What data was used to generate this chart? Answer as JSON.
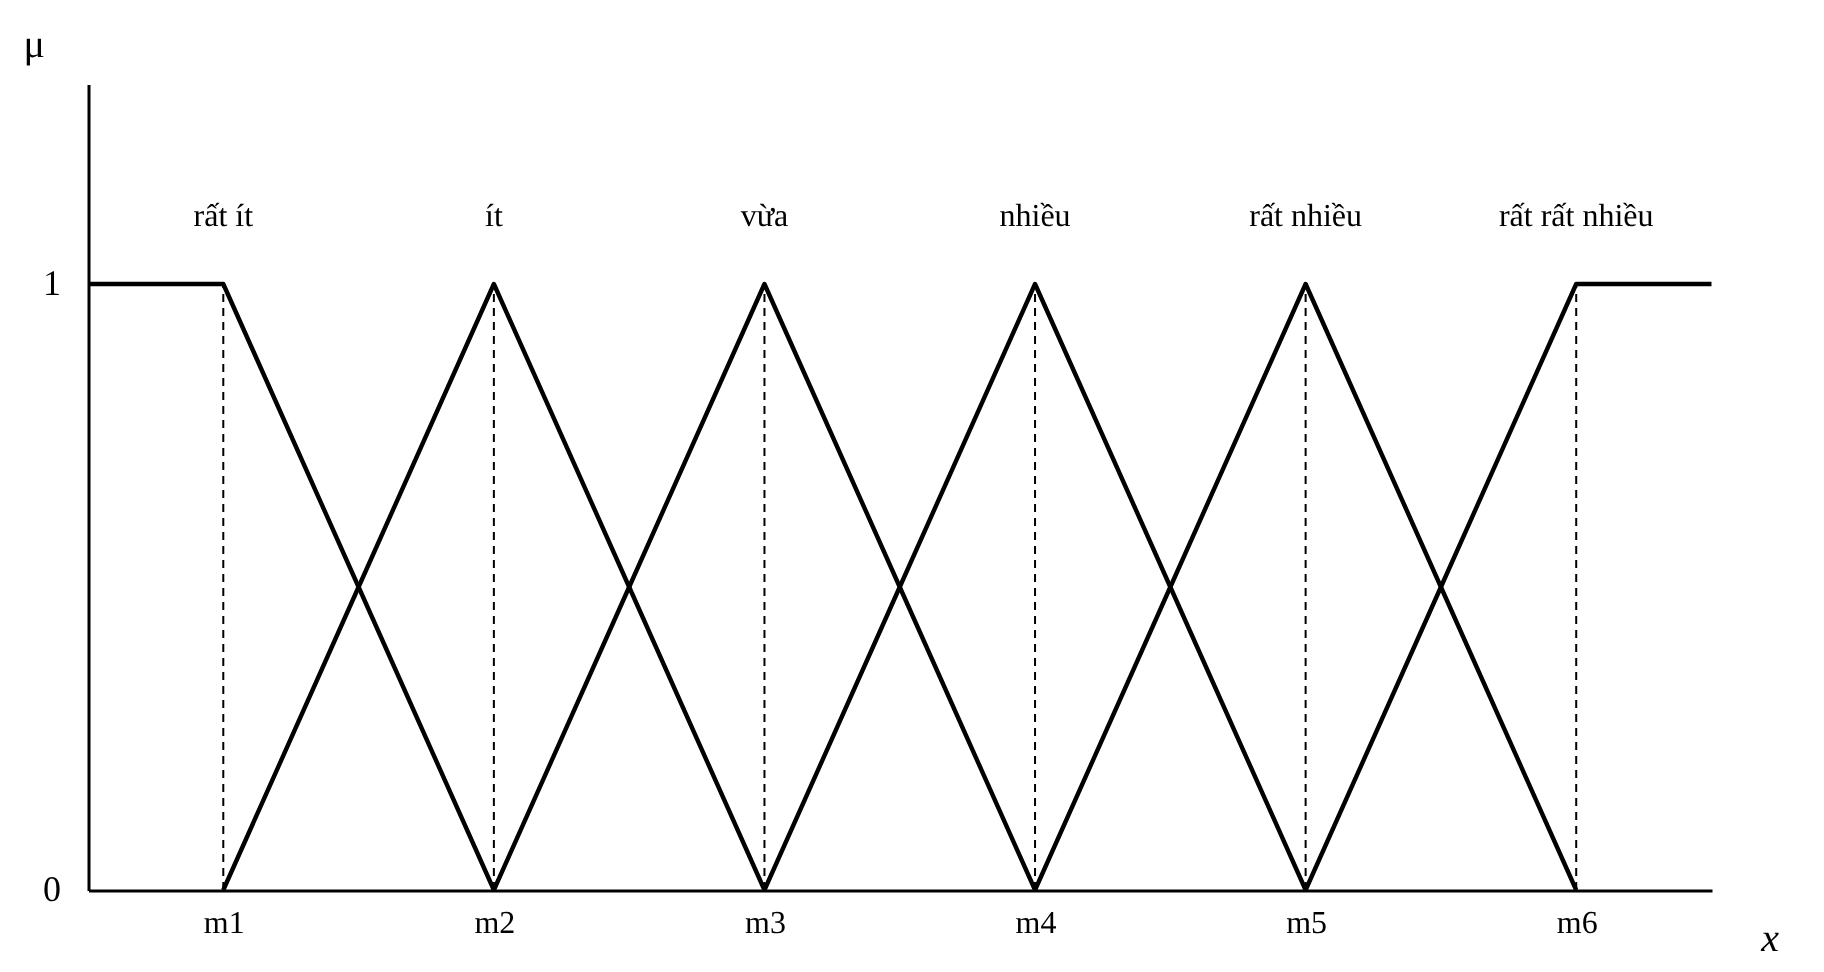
{
  "chart_data": {
    "type": "line",
    "xlabel": "x",
    "ylabel": "μ",
    "ylim": [
      0,
      1.33
    ],
    "yticks": [
      0,
      1
    ],
    "grid": false,
    "legend": false,
    "marker": "none",
    "line_style": "solid",
    "categories": [
      null,
      "m1",
      null,
      "m2",
      null,
      "m3",
      null,
      "m4",
      null,
      "m5",
      null,
      "m6",
      null
    ],
    "series": [
      {
        "name": "rất ít",
        "color": "#000000",
        "values": [
          1,
          1,
          0.5,
          0,
          null,
          null,
          null,
          null,
          null,
          null,
          null,
          null,
          null
        ]
      },
      {
        "name": "ít",
        "color": "#000000",
        "values": [
          null,
          0,
          0.5,
          1,
          0.5,
          0,
          null,
          null,
          null,
          null,
          null,
          null,
          null
        ]
      },
      {
        "name": "vừa",
        "color": "#000000",
        "values": [
          null,
          null,
          null,
          0,
          0.5,
          1,
          0.5,
          0,
          null,
          null,
          null,
          null,
          null
        ]
      },
      {
        "name": "nhiều",
        "color": "#000000",
        "values": [
          null,
          null,
          null,
          null,
          null,
          0,
          0.5,
          1,
          0.5,
          0,
          null,
          null,
          null
        ]
      },
      {
        "name": "rất nhiều",
        "color": "#000000",
        "values": [
          null,
          null,
          null,
          null,
          null,
          null,
          null,
          0,
          0.5,
          1,
          0.5,
          0,
          null
        ]
      },
      {
        "name": "rất rất nhiều",
        "color": "#000000",
        "values": [
          null,
          null,
          null,
          null,
          null,
          null,
          null,
          null,
          null,
          0,
          0.5,
          1,
          1
        ]
      }
    ],
    "ref_lines": [
      {
        "axis": "x",
        "value": "m1",
        "line_style": "dashed"
      },
      {
        "axis": "x",
        "value": "m2",
        "line_style": "dashed"
      },
      {
        "axis": "x",
        "value": "m3",
        "line_style": "dashed"
      },
      {
        "axis": "x",
        "value": "m4",
        "line_style": "dashed"
      },
      {
        "axis": "x",
        "value": "m5",
        "line_style": "dashed"
      },
      {
        "axis": "x",
        "value": "m6",
        "line_style": "dashed"
      }
    ]
  }
}
